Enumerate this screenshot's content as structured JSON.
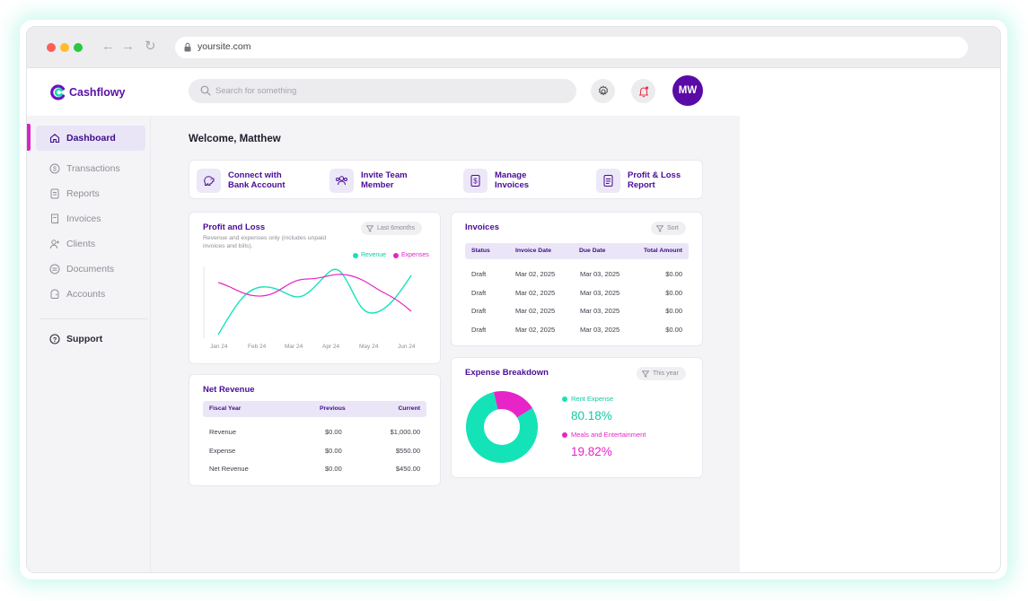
{
  "browser": {
    "url": "yoursite.com"
  },
  "app": {
    "logo_text": "Cashflowy",
    "search_placeholder": "Search for something",
    "avatar_initials": "MW",
    "accent_color": "#5a0aa6",
    "revenue_color": "#14e3b8",
    "expense_color": "#e624c8"
  },
  "sidebar": {
    "items": [
      {
        "label": "Dashboard",
        "icon": "home-icon",
        "active": true
      },
      {
        "label": "Transactions",
        "icon": "dollar-icon",
        "active": false
      },
      {
        "label": "Reports",
        "icon": "report-icon",
        "active": false
      },
      {
        "label": "Invoices",
        "icon": "invoice-icon",
        "active": false
      },
      {
        "label": "Clients",
        "icon": "clients-icon",
        "active": false
      },
      {
        "label": "Documents",
        "icon": "documents-icon",
        "active": false
      },
      {
        "label": "Accounts",
        "icon": "accounts-icon",
        "active": false
      }
    ],
    "support_label": "Support"
  },
  "main": {
    "welcome": "Welcome, Matthew",
    "actions": [
      {
        "line1": "Connect with",
        "line2": "Bank Account",
        "icon": "piggy-bank-icon"
      },
      {
        "line1": "Invite Team",
        "line2": "Member",
        "icon": "team-icon"
      },
      {
        "line1": "Manage",
        "line2": "Invoices",
        "icon": "invoice-dollar-icon"
      },
      {
        "line1": "Profit & Loss",
        "line2": "Report",
        "icon": "document-icon"
      }
    ]
  },
  "profit_loss": {
    "title": "Profit and Loss",
    "subtitle": "Revenue and expenses only (includes unpaid invoices and bills).",
    "filter_label": "Last 6months",
    "legend_revenue": "Revenue",
    "legend_expenses": "Expenses",
    "months": [
      "Jan 24",
      "Feb 24",
      "Mar 24",
      "Apr 24",
      "May 24",
      "Jun 24"
    ]
  },
  "net_revenue": {
    "title": "Net Revenue",
    "headers": {
      "col1": "Fiscal Year",
      "col2": "Previous",
      "col3": "Current"
    },
    "rows": [
      {
        "label": "Revenue",
        "previous": "$0.00",
        "current": "$1,000.00"
      },
      {
        "label": "Expense",
        "previous": "$0.00",
        "current": "$550.00"
      },
      {
        "label": "Net Revenue",
        "previous": "$0.00",
        "current": "$450.00"
      }
    ]
  },
  "invoices": {
    "title": "Invoices",
    "sort_label": "Sort",
    "headers": {
      "status": "Status",
      "invoice_date": "Invoice Date",
      "due_date": "Due Date",
      "total": "Total Amount"
    },
    "rows": [
      {
        "status": "Draft",
        "invoice_date": "Mar 02, 2025",
        "due_date": "Mar 03, 2025",
        "total": "$0.00"
      },
      {
        "status": "Draft",
        "invoice_date": "Mar 02, 2025",
        "due_date": "Mar 03, 2025",
        "total": "$0.00"
      },
      {
        "status": "Draft",
        "invoice_date": "Mar 02, 2025",
        "due_date": "Mar 03, 2025",
        "total": "$0.00"
      },
      {
        "status": "Draft",
        "invoice_date": "Mar 02, 2025",
        "due_date": "Mar 03, 2025",
        "total": "$0.00"
      }
    ]
  },
  "expense_breakdown": {
    "title": "Expense Breakdown",
    "filter_label": "This year",
    "slices": [
      {
        "label": "Rent Expense",
        "percent_text": "80.18%",
        "value": 80.18,
        "color": "#14e3b8"
      },
      {
        "label": "Meals and Entertainment",
        "percent_text": "19.82%",
        "value": 19.82,
        "color": "#e624c8"
      }
    ]
  }
}
